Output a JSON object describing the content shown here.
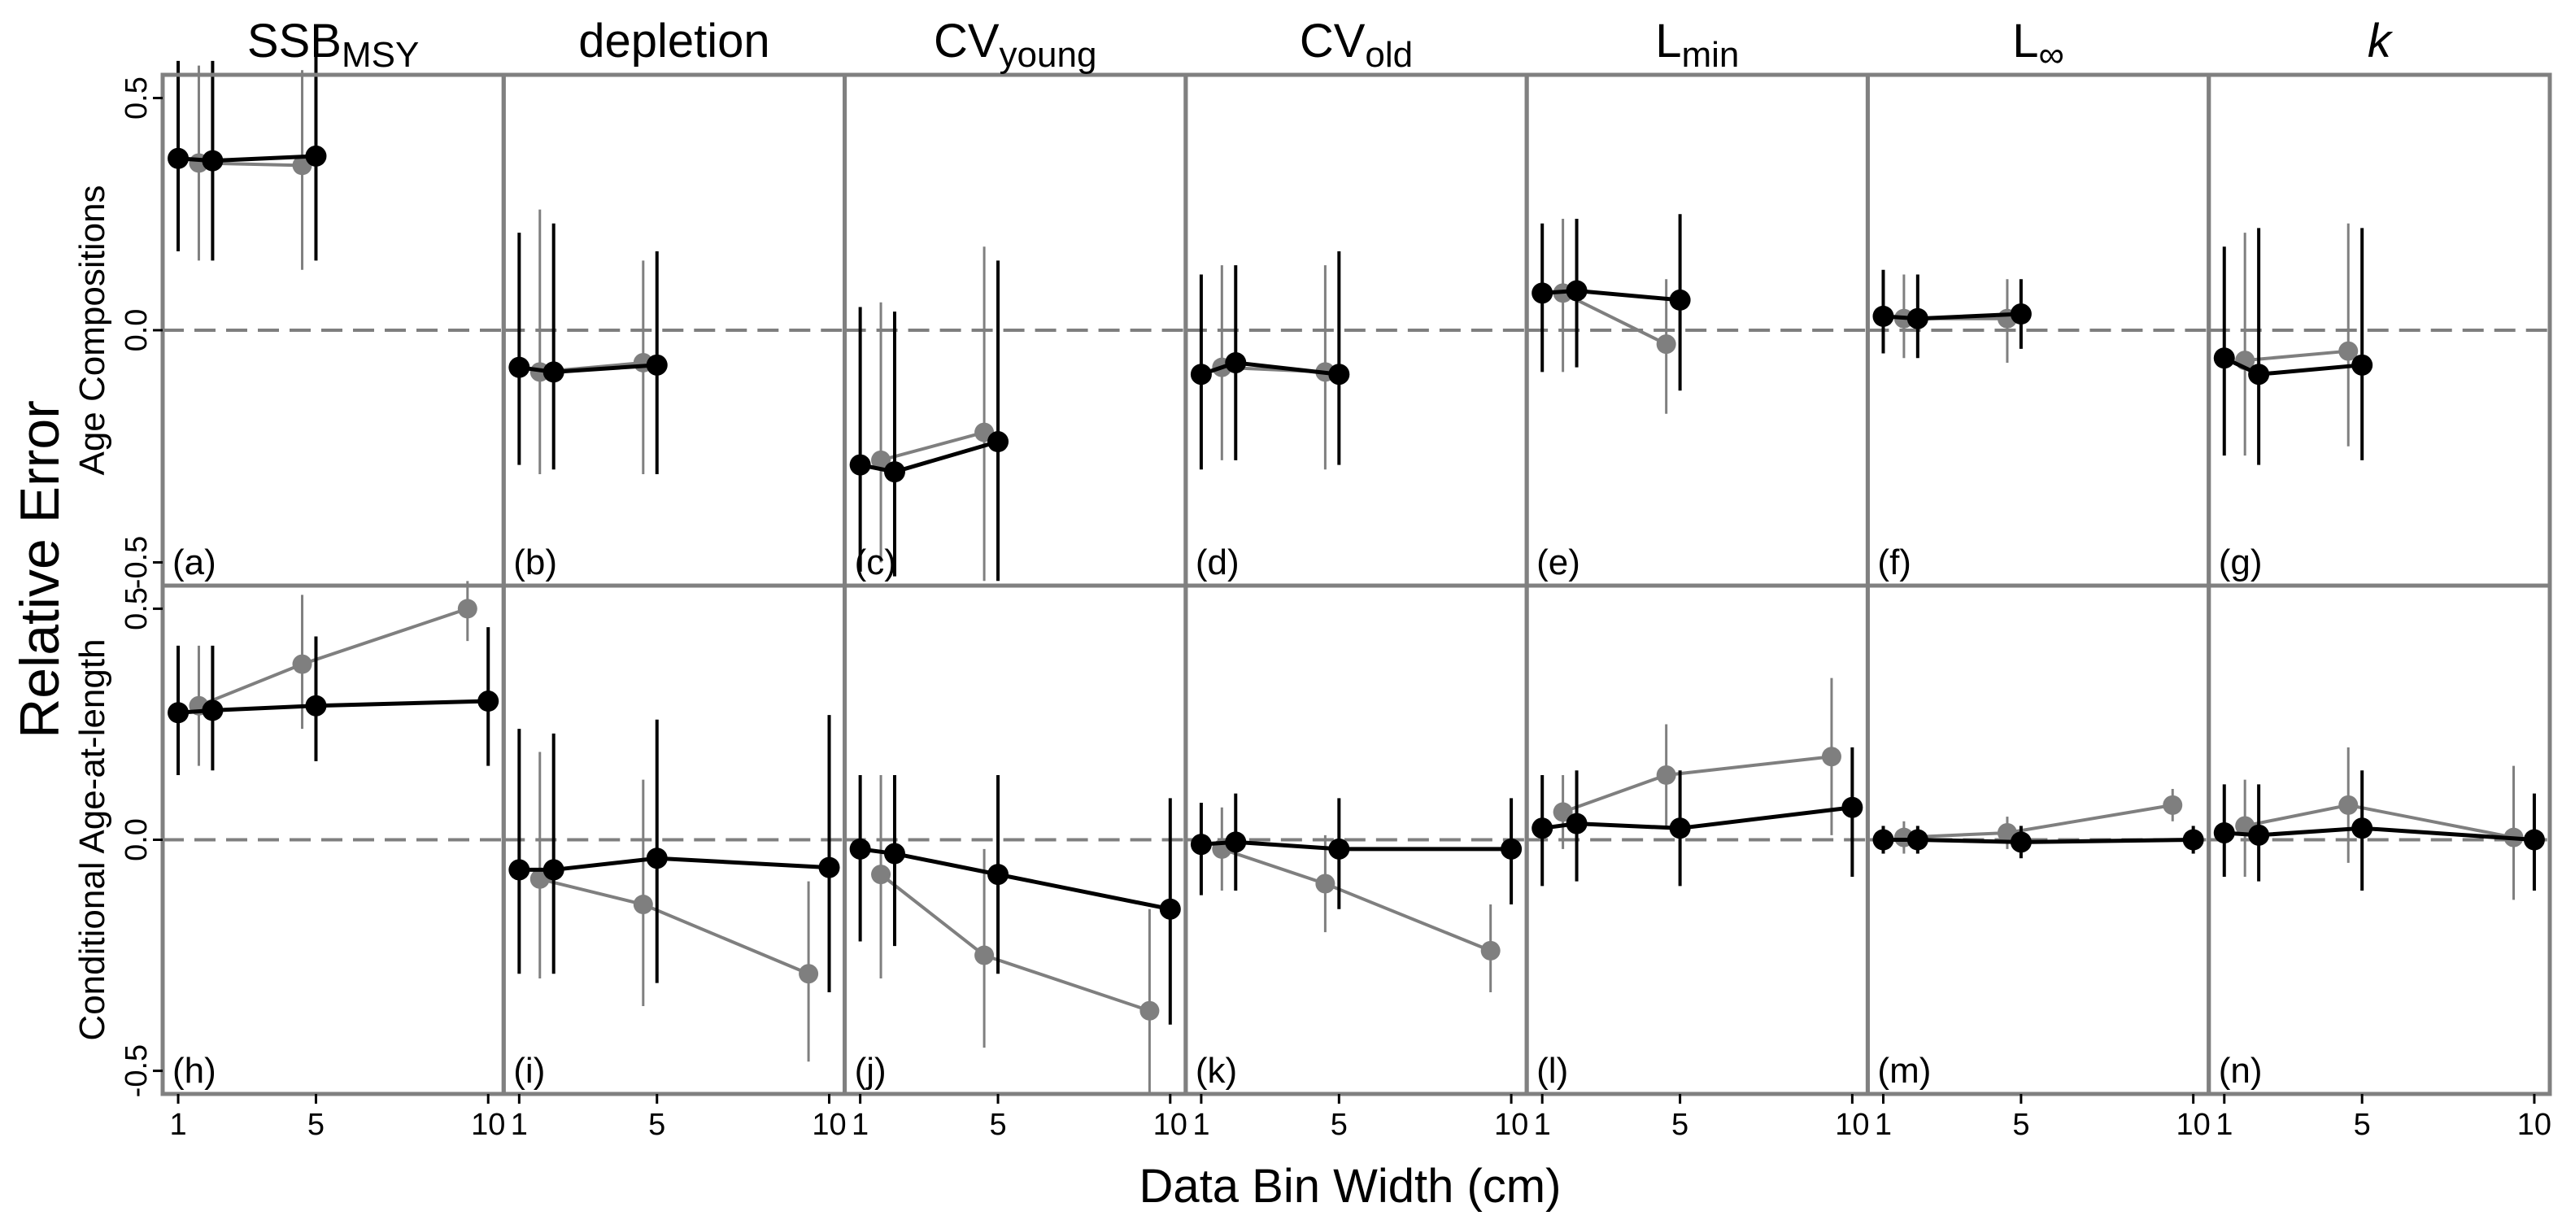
{
  "chart_data": {
    "type": "scatter",
    "xlabel": "Data Bin Width (cm)",
    "ylabel": "Relative Error",
    "row_labels": [
      "Age Compositions",
      "Conditional Age-at-length"
    ],
    "columns": [
      {
        "main": "SSB",
        "sub": "MSY",
        "italic": false
      },
      {
        "main": "depletion",
        "sub": "",
        "italic": false
      },
      {
        "main": "CV",
        "sub": "young",
        "italic": false
      },
      {
        "main": "CV",
        "sub": "old",
        "italic": false
      },
      {
        "main": "L",
        "sub": "min",
        "italic": false
      },
      {
        "main": "L",
        "sub": "∞",
        "italic": false
      },
      {
        "main": "k",
        "sub": "",
        "italic": true
      }
    ],
    "x_ticks": [
      1,
      5,
      10
    ],
    "xlim": [
      0.55,
      10.45
    ],
    "x_tick_labels": [
      "1",
      "5",
      "10"
    ],
    "y_ticks": [
      -0.5,
      0.0,
      0.5
    ],
    "y_tick_labels": [
      "-0.5",
      "0.0",
      "0.5"
    ],
    "ylim": [
      -0.55,
      0.55
    ],
    "grid": false,
    "reference_line": 0.0,
    "series_colors": {
      "gray": "#7f7f7f",
      "black": "#000000"
    },
    "panels": [
      [
        {
          "tag": "(a)",
          "series": [
            {
              "color": "gray",
              "points": [
                [
                  1.6,
                  0.36,
                  0.15,
                  0.57
                ],
                [
                  4.6,
                  0.355,
                  0.13,
                  0.56
                ]
              ]
            },
            {
              "color": "black",
              "points": [
                [
                  1.0,
                  0.37,
                  0.17,
                  0.58
                ],
                [
                  2.0,
                  0.365,
                  0.15,
                  0.58
                ],
                [
                  5.0,
                  0.375,
                  0.15,
                  0.59
                ]
              ]
            }
          ]
        },
        {
          "tag": "(b)",
          "series": [
            {
              "color": "gray",
              "points": [
                [
                  1.6,
                  -0.09,
                  -0.31,
                  0.26
                ],
                [
                  4.6,
                  -0.07,
                  -0.31,
                  0.15
                ]
              ]
            },
            {
              "color": "black",
              "points": [
                [
                  1.0,
                  -0.08,
                  -0.29,
                  0.21
                ],
                [
                  2.0,
                  -0.09,
                  -0.3,
                  0.23
                ],
                [
                  5.0,
                  -0.075,
                  -0.31,
                  0.17
                ]
              ]
            }
          ]
        },
        {
          "tag": "(c)",
          "series": [
            {
              "color": "gray",
              "points": [
                [
                  1.6,
                  -0.28,
                  -0.5,
                  0.06
                ],
                [
                  4.6,
                  -0.22,
                  -0.54,
                  0.18
                ]
              ]
            },
            {
              "color": "black",
              "points": [
                [
                  1.0,
                  -0.29,
                  -0.52,
                  0.05
                ],
                [
                  2.0,
                  -0.305,
                  -0.53,
                  0.04
                ],
                [
                  5.0,
                  -0.24,
                  -0.54,
                  0.15
                ]
              ]
            }
          ]
        },
        {
          "tag": "(d)",
          "series": [
            {
              "color": "gray",
              "points": [
                [
                  1.6,
                  -0.08,
                  -0.28,
                  0.14
                ],
                [
                  4.6,
                  -0.09,
                  -0.3,
                  0.14
                ]
              ]
            },
            {
              "color": "black",
              "points": [
                [
                  1.0,
                  -0.095,
                  -0.3,
                  0.12
                ],
                [
                  2.0,
                  -0.07,
                  -0.28,
                  0.14
                ],
                [
                  5.0,
                  -0.095,
                  -0.29,
                  0.17
                ]
              ]
            }
          ]
        },
        {
          "tag": "(e)",
          "series": [
            {
              "color": "gray",
              "points": [
                [
                  1.6,
                  0.08,
                  -0.09,
                  0.24
                ],
                [
                  4.6,
                  -0.03,
                  -0.18,
                  0.11
                ]
              ]
            },
            {
              "color": "black",
              "points": [
                [
                  1.0,
                  0.08,
                  -0.09,
                  0.23
                ],
                [
                  2.0,
                  0.085,
                  -0.08,
                  0.24
                ],
                [
                  5.0,
                  0.065,
                  -0.13,
                  0.25
                ]
              ]
            }
          ]
        },
        {
          "tag": "(f)",
          "series": [
            {
              "color": "gray",
              "points": [
                [
                  1.6,
                  0.025,
                  -0.06,
                  0.12
                ],
                [
                  4.6,
                  0.025,
                  -0.07,
                  0.11
                ]
              ]
            },
            {
              "color": "black",
              "points": [
                [
                  1.0,
                  0.03,
                  -0.05,
                  0.13
                ],
                [
                  2.0,
                  0.025,
                  -0.06,
                  0.12
                ],
                [
                  5.0,
                  0.035,
                  -0.04,
                  0.11
                ]
              ]
            }
          ]
        },
        {
          "tag": "(g)",
          "series": [
            {
              "color": "gray",
              "points": [
                [
                  1.6,
                  -0.065,
                  -0.27,
                  0.21
                ],
                [
                  4.6,
                  -0.045,
                  -0.25,
                  0.23
                ]
              ]
            },
            {
              "color": "black",
              "points": [
                [
                  1.0,
                  -0.06,
                  -0.27,
                  0.18
                ],
                [
                  2.0,
                  -0.095,
                  -0.29,
                  0.22
                ],
                [
                  5.0,
                  -0.075,
                  -0.28,
                  0.22
                ]
              ]
            }
          ]
        }
      ],
      [
        {
          "tag": "(h)",
          "series": [
            {
              "color": "gray",
              "points": [
                [
                  1.6,
                  0.29,
                  0.16,
                  0.42
                ],
                [
                  4.6,
                  0.38,
                  0.24,
                  0.53
                ],
                [
                  9.4,
                  0.5,
                  0.43,
                  0.56
                ]
              ]
            },
            {
              "color": "black",
              "points": [
                [
                  1.0,
                  0.275,
                  0.14,
                  0.42
                ],
                [
                  2.0,
                  0.28,
                  0.15,
                  0.42
                ],
                [
                  5.0,
                  0.29,
                  0.17,
                  0.44
                ],
                [
                  10.0,
                  0.3,
                  0.16,
                  0.46
                ]
              ]
            }
          ]
        },
        {
          "tag": "(i)",
          "series": [
            {
              "color": "gray",
              "points": [
                [
                  1.6,
                  -0.085,
                  -0.3,
                  0.19
                ],
                [
                  4.6,
                  -0.14,
                  -0.36,
                  0.13
                ],
                [
                  9.4,
                  -0.29,
                  -0.48,
                  -0.09
                ]
              ]
            },
            {
              "color": "black",
              "points": [
                [
                  1.0,
                  -0.065,
                  -0.29,
                  0.24
                ],
                [
                  2.0,
                  -0.065,
                  -0.29,
                  0.23
                ],
                [
                  5.0,
                  -0.04,
                  -0.31,
                  0.26
                ],
                [
                  10.0,
                  -0.06,
                  -0.33,
                  0.27
                ]
              ]
            }
          ]
        },
        {
          "tag": "(j)",
          "series": [
            {
              "color": "gray",
              "points": [
                [
                  1.6,
                  -0.075,
                  -0.3,
                  0.14
                ],
                [
                  4.6,
                  -0.25,
                  -0.45,
                  -0.02
                ],
                [
                  9.4,
                  -0.37,
                  -0.55,
                  -0.15
                ]
              ]
            },
            {
              "color": "black",
              "points": [
                [
                  1.0,
                  -0.02,
                  -0.22,
                  0.14
                ],
                [
                  2.0,
                  -0.03,
                  -0.23,
                  0.14
                ],
                [
                  5.0,
                  -0.075,
                  -0.29,
                  0.14
                ],
                [
                  10.0,
                  -0.15,
                  -0.4,
                  0.09
                ]
              ]
            }
          ]
        },
        {
          "tag": "(k)",
          "series": [
            {
              "color": "gray",
              "points": [
                [
                  1.6,
                  -0.02,
                  -0.11,
                  0.07
                ],
                [
                  4.6,
                  -0.095,
                  -0.2,
                  0.01
                ],
                [
                  9.4,
                  -0.24,
                  -0.33,
                  -0.14
                ]
              ]
            },
            {
              "color": "black",
              "points": [
                [
                  1.0,
                  -0.01,
                  -0.12,
                  0.08
                ],
                [
                  2.0,
                  -0.005,
                  -0.11,
                  0.1
                ],
                [
                  5.0,
                  -0.02,
                  -0.15,
                  0.09
                ],
                [
                  10.0,
                  -0.02,
                  -0.14,
                  0.09
                ]
              ]
            }
          ]
        },
        {
          "tag": "(l)",
          "series": [
            {
              "color": "gray",
              "points": [
                [
                  1.6,
                  0.06,
                  -0.02,
                  0.14
                ],
                [
                  4.6,
                  0.14,
                  0.03,
                  0.25
                ],
                [
                  9.4,
                  0.18,
                  0.01,
                  0.35
                ]
              ]
            },
            {
              "color": "black",
              "points": [
                [
                  1.0,
                  0.025,
                  -0.1,
                  0.14
                ],
                [
                  2.0,
                  0.035,
                  -0.09,
                  0.15
                ],
                [
                  5.0,
                  0.025,
                  -0.1,
                  0.15
                ],
                [
                  10.0,
                  0.07,
                  -0.08,
                  0.2
                ]
              ]
            }
          ]
        },
        {
          "tag": "(m)",
          "series": [
            {
              "color": "gray",
              "points": [
                [
                  1.6,
                  0.005,
                  -0.03,
                  0.04
                ],
                [
                  4.6,
                  0.015,
                  -0.02,
                  0.05
                ],
                [
                  9.4,
                  0.075,
                  0.04,
                  0.11
                ]
              ]
            },
            {
              "color": "black",
              "points": [
                [
                  1.0,
                  0.0,
                  -0.03,
                  0.03
                ],
                [
                  2.0,
                  0.0,
                  -0.03,
                  0.03
                ],
                [
                  5.0,
                  -0.005,
                  -0.04,
                  0.03
                ],
                [
                  10.0,
                  0.0,
                  -0.03,
                  0.03
                ]
              ]
            }
          ]
        },
        {
          "tag": "(n)",
          "series": [
            {
              "color": "gray",
              "points": [
                [
                  1.6,
                  0.03,
                  -0.08,
                  0.13
                ],
                [
                  4.6,
                  0.075,
                  -0.05,
                  0.2
                ],
                [
                  9.4,
                  0.005,
                  -0.13,
                  0.16
                ]
              ]
            },
            {
              "color": "black",
              "points": [
                [
                  1.0,
                  0.015,
                  -0.08,
                  0.12
                ],
                [
                  2.0,
                  0.01,
                  -0.09,
                  0.12
                ],
                [
                  5.0,
                  0.025,
                  -0.11,
                  0.15
                ],
                [
                  10.0,
                  0.0,
                  -0.11,
                  0.1
                ]
              ]
            }
          ]
        }
      ]
    ]
  }
}
